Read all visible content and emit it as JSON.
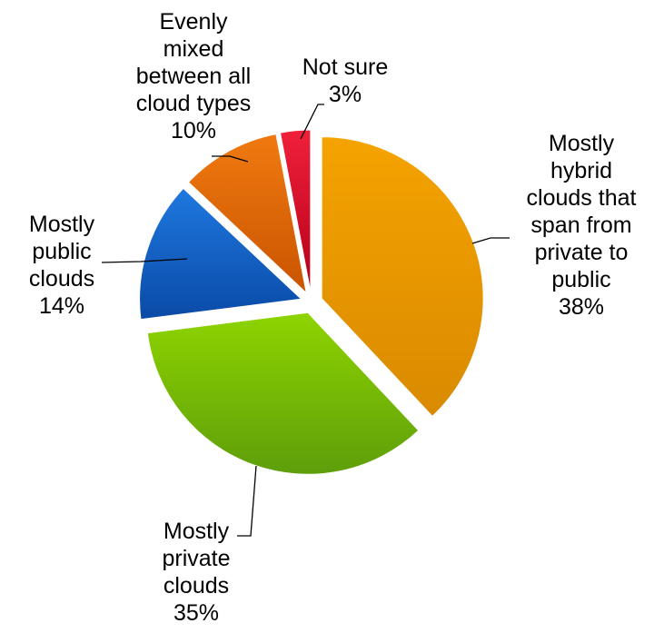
{
  "chart_data": {
    "type": "pie",
    "title": "",
    "legend": "none",
    "exploded": true,
    "slices": [
      {
        "name": "Mostly hybrid clouds that span from private to public",
        "value": 38,
        "label_lines": [
          "Mostly",
          "hybrid",
          "clouds that",
          "span from",
          "private to",
          "public",
          "38%"
        ],
        "color": "#f5a300",
        "color_dark": "#d98a00"
      },
      {
        "name": "Mostly private clouds",
        "value": 35,
        "label_lines": [
          "Mostly",
          "private",
          "clouds",
          "35%"
        ],
        "color": "#8ed400",
        "color_dark": "#5e9e0a"
      },
      {
        "name": "Mostly public clouds",
        "value": 14,
        "label_lines": [
          "Mostly",
          "public",
          "clouds",
          "14%"
        ],
        "color": "#1f78e0",
        "color_dark": "#0a4aa6"
      },
      {
        "name": "Evenly mixed between all cloud types",
        "value": 10,
        "label_lines": [
          "Evenly",
          "mixed",
          "between all",
          "cloud types",
          "10%"
        ],
        "color": "#f07a10",
        "color_dark": "#c95400"
      },
      {
        "name": "Not sure",
        "value": 3,
        "label_lines": [
          "Not sure",
          "3%"
        ],
        "color": "#f0203a",
        "color_dark": "#b5001a"
      }
    ]
  }
}
